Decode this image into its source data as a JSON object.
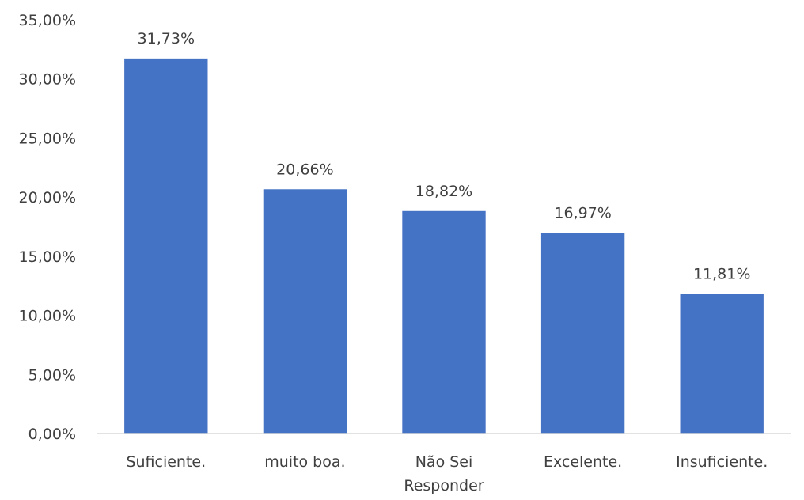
{
  "chart_data": {
    "type": "bar",
    "categories": [
      "Suficiente.",
      "muito boa.",
      "Não Sei Responder",
      "Excelente.",
      "Insuficiente."
    ],
    "category_label_lines": [
      [
        "Suficiente."
      ],
      [
        "muito boa."
      ],
      [
        "Não Sei",
        "Responder"
      ],
      [
        "Excelente."
      ],
      [
        "Insuficiente."
      ]
    ],
    "values": [
      31.73,
      20.66,
      18.82,
      16.97,
      11.81
    ],
    "data_labels": [
      "31,73%",
      "20,66%",
      "18,82%",
      "16,97%",
      "11,81%"
    ],
    "y_ticks": [
      0,
      5,
      10,
      15,
      20,
      25,
      30,
      35
    ],
    "y_tick_labels": [
      "0,00%",
      "5,00%",
      "10,00%",
      "15,00%",
      "20,00%",
      "25,00%",
      "30,00%",
      "35,00%"
    ],
    "ylim": [
      0,
      35
    ],
    "title": "",
    "xlabel": "",
    "ylabel": "",
    "grid": false,
    "legend": "none",
    "bar_color": "#4472c4"
  }
}
